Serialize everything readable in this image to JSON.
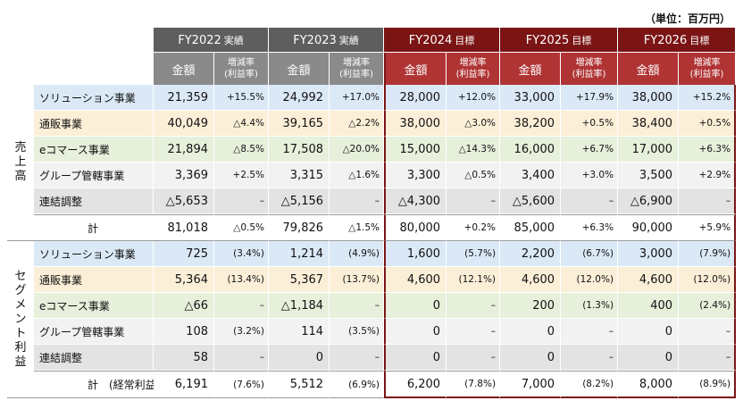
{
  "unit": "（単位：百万円）",
  "years": [
    {
      "label": "FY2022",
      "tag": "実績",
      "style": "actual"
    },
    {
      "label": "FY2023",
      "tag": "実績",
      "style": "actual"
    },
    {
      "label": "FY2024",
      "tag": "目標",
      "style": "target"
    },
    {
      "label": "FY2025",
      "tag": "目標",
      "style": "target"
    },
    {
      "label": "FY2026",
      "tag": "目標",
      "style": "target"
    }
  ],
  "sub_headers": {
    "amount": "金額",
    "rate_line1": "増減率",
    "rate_line2": "(利益率)"
  },
  "sections": [
    {
      "title": "売上高",
      "rows": [
        {
          "name": "ソリューション事業",
          "cls": "c-sol",
          "cells": [
            [
              "21,359",
              "+15.5%"
            ],
            [
              "24,992",
              "+17.0%"
            ],
            [
              "28,000",
              "+12.0%"
            ],
            [
              "33,000",
              "+17.9%"
            ],
            [
              "38,000",
              "+15.2%"
            ]
          ]
        },
        {
          "name": "通販事業",
          "cls": "c-tsu",
          "cells": [
            [
              "40,049",
              "△4.4%"
            ],
            [
              "39,165",
              "△2.2%"
            ],
            [
              "38,000",
              "△3.0%"
            ],
            [
              "38,200",
              "+0.5%"
            ],
            [
              "38,400",
              "+0.5%"
            ]
          ]
        },
        {
          "name": "eコマース事業",
          "cls": "c-ec",
          "cells": [
            [
              "21,894",
              "△8.5%"
            ],
            [
              "17,508",
              "△20.0%"
            ],
            [
              "15,000",
              "△14.3%"
            ],
            [
              "16,000",
              "+6.7%"
            ],
            [
              "17,000",
              "+6.3%"
            ]
          ]
        },
        {
          "name": "グループ管轄事業",
          "cls": "c-grp",
          "cells": [
            [
              "3,369",
              "+2.5%"
            ],
            [
              "3,315",
              "△1.6%"
            ],
            [
              "3,300",
              "△0.5%"
            ],
            [
              "3,400",
              "+3.0%"
            ],
            [
              "3,500",
              "+2.9%"
            ]
          ]
        },
        {
          "name": "連結調整",
          "cls": "c-adj",
          "cells": [
            [
              "△5,653",
              "–"
            ],
            [
              "△5,156",
              "–"
            ],
            [
              "△4,300",
              "–"
            ],
            [
              "△5,600",
              "–"
            ],
            [
              "△6,900",
              "–"
            ]
          ]
        }
      ],
      "total": {
        "name": "計",
        "cells": [
          [
            "81,018",
            "△0.5%"
          ],
          [
            "79,826",
            "△1.5%"
          ],
          [
            "80,000",
            "+0.2%"
          ],
          [
            "85,000",
            "+6.3%"
          ],
          [
            "90,000",
            "+5.9%"
          ]
        ]
      }
    },
    {
      "title": "セグメント利益",
      "rows": [
        {
          "name": "ソリューション事業",
          "cls": "c-sol",
          "cells": [
            [
              "725",
              "(3.4%)"
            ],
            [
              "1,214",
              "(4.9%)"
            ],
            [
              "1,600",
              "(5.7%)"
            ],
            [
              "2,200",
              "(6.7%)"
            ],
            [
              "3,000",
              "(7.9%)"
            ]
          ]
        },
        {
          "name": "通販事業",
          "cls": "c-tsu",
          "cells": [
            [
              "5,364",
              "(13.4%)"
            ],
            [
              "5,367",
              "(13.7%)"
            ],
            [
              "4,600",
              "(12.1%)"
            ],
            [
              "4,600",
              "(12.0%)"
            ],
            [
              "4,600",
              "(12.0%)"
            ]
          ]
        },
        {
          "name": "eコマース事業",
          "cls": "c-ec",
          "cells": [
            [
              "△66",
              "–"
            ],
            [
              "△1,184",
              "–"
            ],
            [
              "0",
              "–"
            ],
            [
              "200",
              "(1.3%)"
            ],
            [
              "400",
              "(2.4%)"
            ]
          ]
        },
        {
          "name": "グループ管轄事業",
          "cls": "c-grp",
          "cells": [
            [
              "108",
              "(3.2%)"
            ],
            [
              "114",
              "(3.5%)"
            ],
            [
              "0",
              "–"
            ],
            [
              "0",
              "–"
            ],
            [
              "0",
              "–"
            ]
          ]
        },
        {
          "name": "連結調整",
          "cls": "c-adj",
          "cells": [
            [
              "58",
              "–"
            ],
            [
              "0",
              "–"
            ],
            [
              "0",
              "–"
            ],
            [
              "0",
              "–"
            ],
            [
              "0",
              "–"
            ]
          ]
        }
      ],
      "total": {
        "name": "計　(経常利益)",
        "cells": [
          [
            "6,191",
            "(7.6%)"
          ],
          [
            "5,512",
            "(6.9%)"
          ],
          [
            "6,200",
            "(7.8%)"
          ],
          [
            "7,000",
            "(8.2%)"
          ],
          [
            "8,000",
            "(8.9%)"
          ]
        ]
      }
    }
  ]
}
